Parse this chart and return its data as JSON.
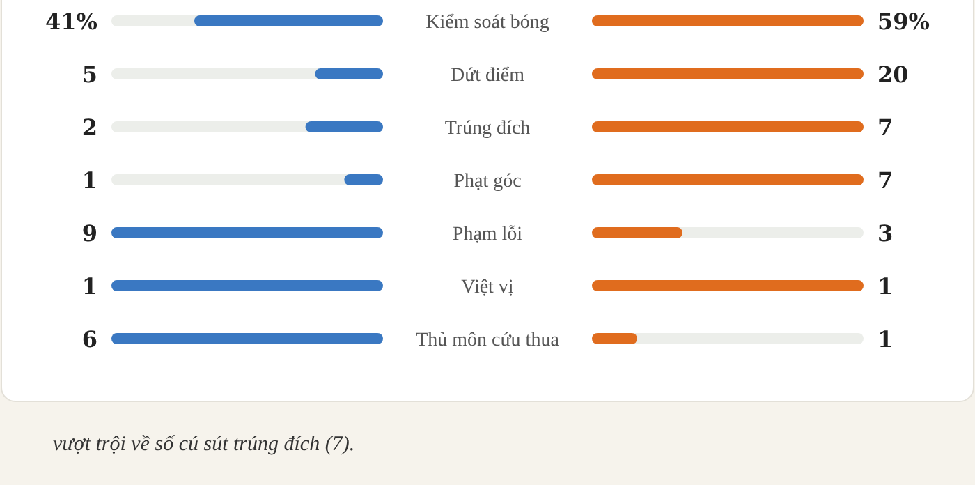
{
  "chart_data": {
    "type": "other",
    "categories": [
      "Kiểm soát bóng",
      "Dứt điểm",
      "Trúng đích",
      "Phạt góc",
      "Phạm lỗi",
      "Việt vị",
      "Thủ môn cứu thua"
    ],
    "series": [
      {
        "color": "#3a78c2",
        "values": [
          41,
          5,
          2,
          1,
          9,
          1,
          6
        ],
        "value_labels": [
          "41%",
          "5",
          "2",
          "1",
          "9",
          "1",
          "6"
        ]
      },
      {
        "color": "#e06c1e",
        "values": [
          59,
          20,
          7,
          7,
          3,
          1,
          1
        ],
        "value_labels": [
          "59%",
          "20",
          "7",
          "7",
          "3",
          "1",
          "1"
        ]
      }
    ],
    "annotations": [
      "vượt trội về số cú sút trúng đích (7)."
    ]
  }
}
